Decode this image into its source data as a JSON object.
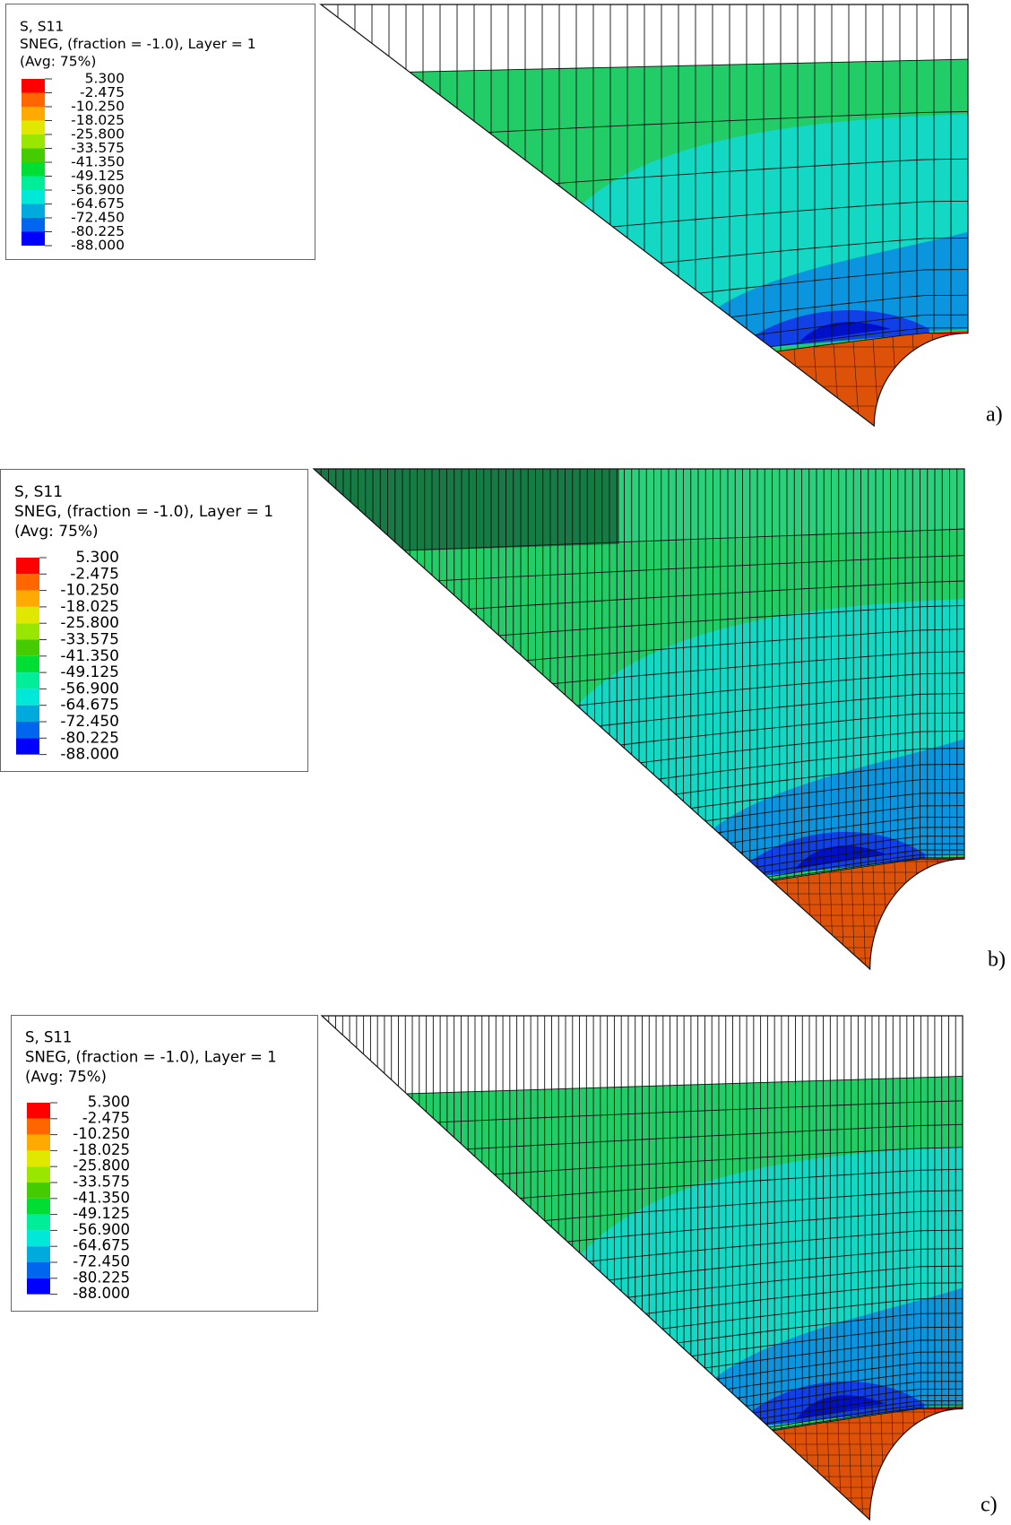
{
  "legend_colors": [
    "#ff0000",
    "#ff6600",
    "#ffaa00",
    "#e0e800",
    "#99e600",
    "#44cc00",
    "#00dd33",
    "#00ee99",
    "#00e8d8",
    "#00aadd",
    "#0066ee",
    "#0000ff"
  ],
  "panels": [
    {
      "label": "a)",
      "legend": {
        "lines": [
          "S, S11",
          "SNEG, (fraction = -1.0), Layer = 1",
          "(Avg: 75%)"
        ],
        "levels": [
          "5.300",
          "-2.475",
          "-10.250",
          "-18.025",
          "-25.800",
          "-33.575",
          "-41.350",
          "-49.125",
          "-56.900",
          "-64.675",
          "-72.450",
          "-80.225",
          "-88.000"
        ]
      }
    },
    {
      "label": "b)",
      "legend": {
        "lines": [
          "S, S11",
          "SNEG, (fraction = -1.0), Layer = 1",
          "(Avg: 75%)"
        ],
        "levels": [
          "5.300",
          "-2.475",
          "-10.250",
          "-18.025",
          "-25.800",
          "-33.575",
          "-41.350",
          "-49.125",
          "-56.900",
          "-64.675",
          "-72.450",
          "-80.225",
          "-88.000"
        ]
      }
    },
    {
      "label": "c)",
      "legend": {
        "lines": [
          "S, S11",
          "SNEG, (fraction = -1.0), Layer = 1",
          "(Avg: 75%)"
        ],
        "levels": [
          "5.300",
          "-2.475",
          "-10.250",
          "-18.025",
          "-25.800",
          "-33.575",
          "-41.350",
          "-49.125",
          "-56.900",
          "-64.675",
          "-72.450",
          "-80.225",
          "-88.000"
        ]
      }
    }
  ]
}
